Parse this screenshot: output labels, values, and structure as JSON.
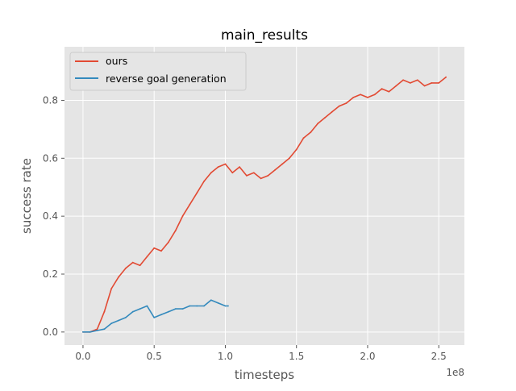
{
  "chart_data": {
    "type": "line",
    "title": "main_results",
    "xlabel": "timesteps",
    "ylabel": "success rate",
    "x_offset_label": "1e8",
    "xlim": [
      -0.13,
      2.68
    ],
    "ylim": [
      -0.045,
      0.985
    ],
    "x_ticks": [
      0.0,
      0.5,
      1.0,
      1.5,
      2.0,
      2.5
    ],
    "x_tick_labels": [
      "0.0",
      "0.5",
      "1.0",
      "1.5",
      "2.0",
      "2.5"
    ],
    "y_ticks": [
      0.0,
      0.2,
      0.4,
      0.6,
      0.8
    ],
    "y_tick_labels": [
      "0.0",
      "0.2",
      "0.4",
      "0.6",
      "0.8"
    ],
    "grid": true,
    "background": "#e5e5e5",
    "legend_position": "upper-left",
    "series": [
      {
        "name": "ours",
        "color": "#e24a33",
        "x": [
          0.0,
          0.05,
          0.1,
          0.15,
          0.2,
          0.25,
          0.3,
          0.35,
          0.4,
          0.45,
          0.5,
          0.55,
          0.6,
          0.65,
          0.7,
          0.75,
          0.8,
          0.85,
          0.9,
          0.95,
          1.0,
          1.05,
          1.1,
          1.15,
          1.2,
          1.25,
          1.3,
          1.35,
          1.4,
          1.45,
          1.5,
          1.55,
          1.6,
          1.65,
          1.7,
          1.75,
          1.8,
          1.85,
          1.9,
          1.95,
          2.0,
          2.05,
          2.1,
          2.15,
          2.2,
          2.25,
          2.3,
          2.35,
          2.4,
          2.45,
          2.5,
          2.55
        ],
        "y": [
          0.0,
          0.0,
          0.01,
          0.07,
          0.15,
          0.19,
          0.22,
          0.24,
          0.23,
          0.26,
          0.29,
          0.28,
          0.31,
          0.35,
          0.4,
          0.44,
          0.48,
          0.52,
          0.55,
          0.57,
          0.58,
          0.55,
          0.57,
          0.54,
          0.55,
          0.53,
          0.54,
          0.56,
          0.58,
          0.6,
          0.63,
          0.67,
          0.69,
          0.72,
          0.74,
          0.76,
          0.78,
          0.79,
          0.81,
          0.82,
          0.81,
          0.82,
          0.84,
          0.83,
          0.85,
          0.87,
          0.86,
          0.87,
          0.85,
          0.86,
          0.86,
          0.88
        ]
      },
      {
        "name": "reverse goal generation",
        "color": "#348abd",
        "x": [
          0.0,
          0.05,
          0.1,
          0.15,
          0.2,
          0.25,
          0.3,
          0.35,
          0.4,
          0.45,
          0.5,
          0.55,
          0.6,
          0.65,
          0.7,
          0.75,
          0.8,
          0.85,
          0.9,
          0.95,
          1.0,
          1.02
        ],
        "y": [
          0.0,
          0.0,
          0.005,
          0.01,
          0.03,
          0.04,
          0.05,
          0.07,
          0.08,
          0.09,
          0.05,
          0.06,
          0.07,
          0.08,
          0.08,
          0.09,
          0.09,
          0.09,
          0.11,
          0.1,
          0.09,
          0.09
        ]
      }
    ]
  }
}
